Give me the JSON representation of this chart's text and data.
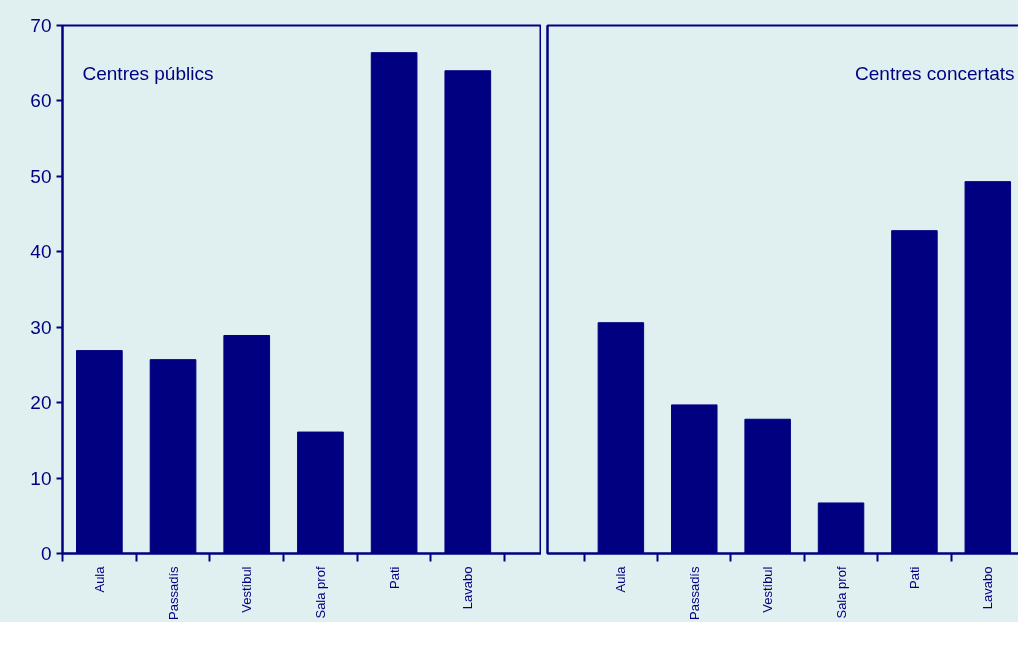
{
  "chart_data": [
    {
      "type": "bar",
      "categories": [
        "Aula",
        "Passadís",
        "Vestíbul",
        "Sala prof",
        "Pati",
        "Lavabo"
      ],
      "values": [
        26.9,
        25.7,
        28.9,
        16.1,
        66.4,
        64.0
      ],
      "color": "#000080",
      "ylim": [
        0,
        70
      ],
      "yticks": [
        0,
        10,
        20,
        30,
        40,
        50,
        60,
        70
      ],
      "grid": false,
      "annotations": [
        "Centres públics"
      ]
    },
    {
      "type": "bar",
      "categories": [
        "Aula",
        "Passadís",
        "Vestíbul",
        "Sala prof",
        "Pati",
        "Lavabo"
      ],
      "values": [
        30.6,
        19.7,
        17.8,
        6.7,
        42.8,
        49.3
      ],
      "color": "#000080",
      "ylim": [
        0,
        70
      ],
      "yticks": [
        0,
        10,
        20,
        30,
        40,
        50,
        60,
        70
      ],
      "grid": false,
      "tick_labels": "x",
      "annotations": [
        "Centres concertats"
      ]
    }
  ]
}
